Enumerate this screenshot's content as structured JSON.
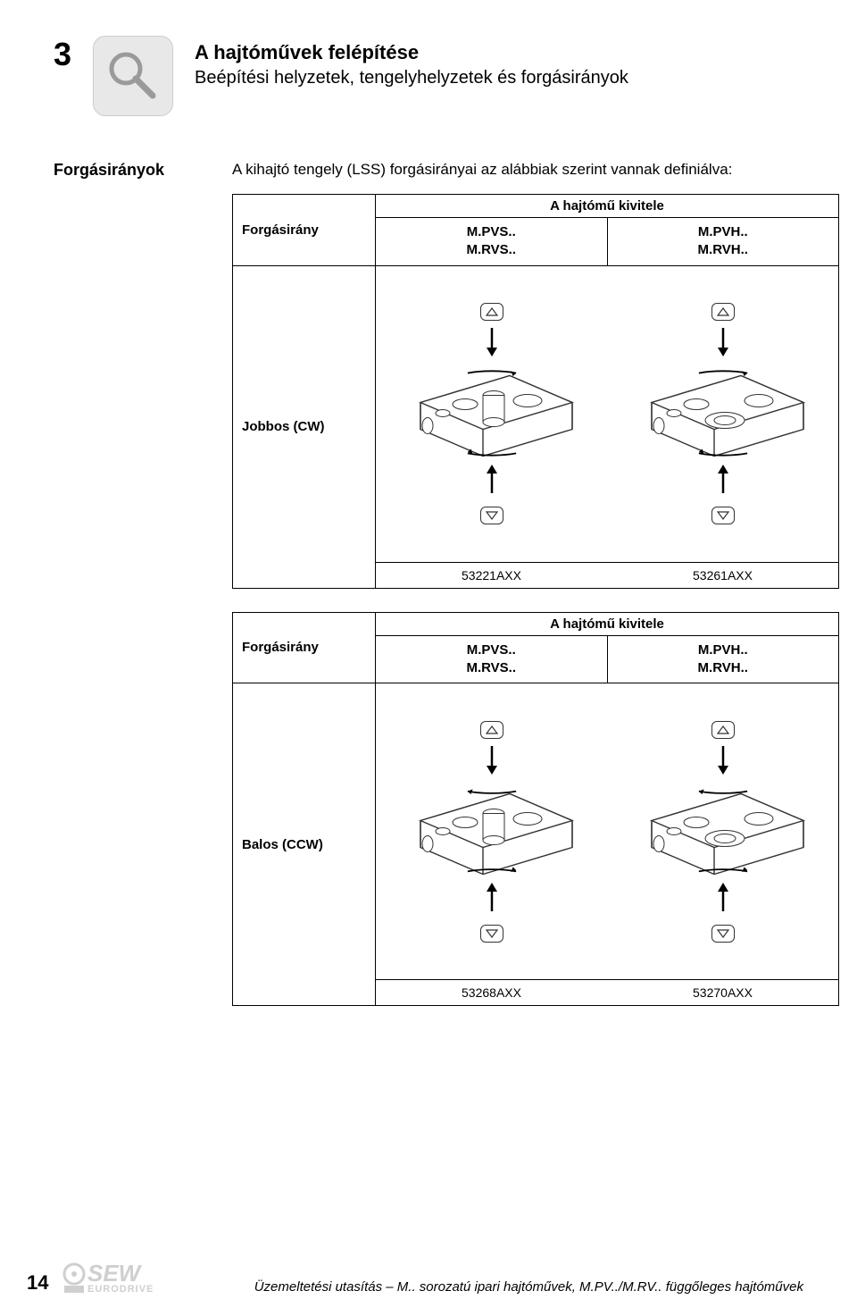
{
  "section_number": "3",
  "header_title": "A hajtóművek felépítése",
  "header_subtitle": "Beépítési helyzetek, tengelyhelyzetek és forgásirányok",
  "side_heading": "Forgásirányok",
  "intro_text": "A kihajtó tengely (LSS) forgásirányai az alábbiak szerint vannak definiálva:",
  "tables": [
    {
      "row_label_col": "Forgásirány",
      "span_header": "A hajtómű kivitele",
      "col1_line1": "M.PVS..",
      "col1_line2": "M.RVS..",
      "col2_line1": "M.PVH..",
      "col2_line2": "M.RVH..",
      "row_direction_label": "Jobbos (CW)",
      "ref_left": "53221AXX",
      "ref_right": "53261AXX",
      "rotation": "cw",
      "left_has_shaft": true,
      "right_has_shaft": false
    },
    {
      "row_label_col": "Forgásirány",
      "span_header": "A hajtómű kivitele",
      "col1_line1": "M.PVS..",
      "col1_line2": "M.RVS..",
      "col2_line1": "M.PVH..",
      "col2_line2": "M.RVH..",
      "row_direction_label": "Balos (CCW)",
      "ref_left": "53268AXX",
      "ref_right": "53270AXX",
      "rotation": "ccw",
      "left_has_shaft": true,
      "right_has_shaft": false
    }
  ],
  "footer": {
    "page": "14",
    "text": "Üzemeltetési utasítás – M.. sorozatú ipari hajtóművek, M.PV../M.RV.. függőleges hajtóművek",
    "logo_top": "SEW",
    "logo_bottom": "EURODRIVE"
  },
  "colors": {
    "text": "#000000",
    "border": "#000000",
    "icon_bg": "#e8e8e8",
    "logo_gray": "#cfcfcf",
    "diagram_line": "#333333",
    "diagram_fill": "#ffffff"
  },
  "typography": {
    "section_number_pt": 36,
    "title_pt": 22,
    "subtitle_pt": 20,
    "body_pt": 17,
    "table_head_pt": 15,
    "ref_pt": 14
  }
}
